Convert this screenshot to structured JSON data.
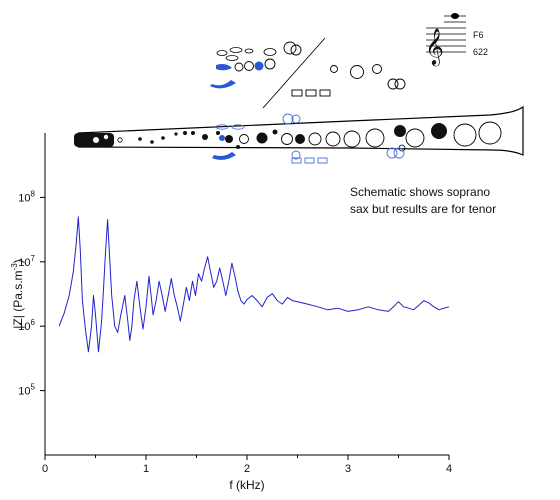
{
  "chart_data": {
    "type": "line",
    "xlabel": "f (kHz)",
    "ylabel_main": "|Z| (Pa.s.m",
    "ylabel_sup": "-3",
    "ylabel_tail": ")",
    "xlim": [
      0,
      4
    ],
    "ylim": [
      10000,
      1000000000
    ],
    "yscale": "log",
    "x_ticks": [
      {
        "v": 0,
        "label": "0"
      },
      {
        "v": 1,
        "label": "1"
      },
      {
        "v": 2,
        "label": "2"
      },
      {
        "v": 3,
        "label": "3"
      },
      {
        "v": 4,
        "label": "4"
      }
    ],
    "y_ticks": [
      {
        "v": 100000,
        "base": "10",
        "exp": "5"
      },
      {
        "v": 1000000,
        "base": "10",
        "exp": "6"
      },
      {
        "v": 10000000,
        "base": "10",
        "exp": "7"
      },
      {
        "v": 100000000,
        "base": "10",
        "exp": "8"
      }
    ],
    "line_color": "#2222cc",
    "series": [
      {
        "x": [
          0.14,
          0.19,
          0.24,
          0.28,
          0.31,
          0.33,
          0.35,
          0.37,
          0.4,
          0.43,
          0.46,
          0.48,
          0.5,
          0.53,
          0.56,
          0.58,
          0.6,
          0.62,
          0.64,
          0.66,
          0.69,
          0.72,
          0.75,
          0.79,
          0.82,
          0.84,
          0.86,
          0.88,
          0.91,
          0.94,
          0.97,
          1.0,
          1.03,
          1.05,
          1.07,
          1.1,
          1.13,
          1.16,
          1.19,
          1.22,
          1.25,
          1.28,
          1.31,
          1.34,
          1.37,
          1.4,
          1.43,
          1.46,
          1.49,
          1.52,
          1.55,
          1.58,
          1.61,
          1.64,
          1.67,
          1.7,
          1.73,
          1.76,
          1.79,
          1.82,
          1.85,
          1.88,
          1.91,
          1.94,
          1.97,
          2.0,
          2.05,
          2.1,
          2.15,
          2.2,
          2.25,
          2.3,
          2.35,
          2.4,
          2.45,
          2.5,
          2.6,
          2.7,
          2.8,
          2.9,
          3.0,
          3.1,
          3.2,
          3.3,
          3.4,
          3.45,
          3.5,
          3.55,
          3.6,
          3.65,
          3.7,
          3.75,
          3.8,
          3.85,
          3.9,
          3.95,
          4.0
        ],
        "y": [
          1000000,
          1600000,
          3000000,
          7000000,
          20000000,
          50000000,
          15000000,
          2500000,
          900000,
          400000,
          1000000,
          3000000,
          1500000,
          400000,
          1200000,
          4000000,
          15000000,
          45000000,
          12000000,
          3000000,
          1000000,
          800000,
          1500000,
          3000000,
          1200000,
          600000,
          1000000,
          2500000,
          5000000,
          2000000,
          900000,
          2000000,
          6000000,
          3000000,
          1500000,
          2500000,
          5000000,
          3000000,
          1700000,
          3000000,
          5500000,
          3000000,
          2000000,
          1200000,
          2200000,
          4000000,
          2500000,
          5000000,
          3000000,
          6500000,
          5000000,
          8000000,
          12000000,
          7000000,
          4000000,
          5000000,
          8000000,
          5000000,
          3000000,
          5000000,
          9500000,
          6000000,
          3500000,
          2500000,
          2200000,
          2600000,
          3000000,
          2500000,
          2000000,
          2800000,
          3200000,
          2500000,
          2200000,
          2800000,
          2500000,
          2400000,
          2200000,
          2000000,
          1800000,
          1900000,
          1700000,
          1800000,
          2000000,
          1800000,
          1700000,
          2000000,
          2400000,
          2000000,
          1900000,
          1800000,
          2100000,
          2500000,
          2300000,
          2000000,
          1800000,
          1900000,
          2000000
        ]
      }
    ]
  },
  "annotation": {
    "line1": "Schematic shows soprano",
    "line2": "sax but results are for tenor"
  },
  "note": {
    "name": "F6",
    "frequency": "622"
  }
}
